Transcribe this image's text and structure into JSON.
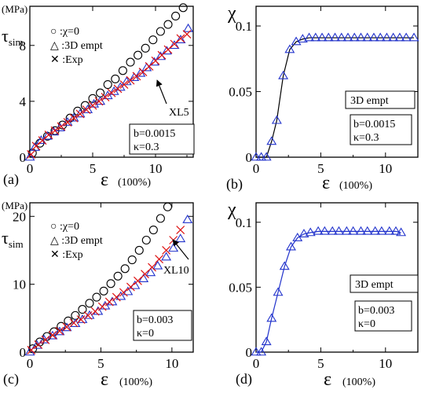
{
  "chart_data": [
    {
      "id": "a",
      "type": "scatter",
      "panel_label": "(a)",
      "unit": "(MPa)",
      "ylabel_main": "τ",
      "ylabel_sub": "sim",
      "xlabel_main": "ε",
      "xlabel_unit": "(100%)",
      "xlim": [
        0,
        13
      ],
      "ylim": [
        0,
        10.8
      ],
      "xticks": [
        0,
        5,
        10
      ],
      "yticks": [
        0,
        4,
        8
      ],
      "legend": [
        "○ :χ=0",
        "△ :3D empt",
        "✕ :Exp"
      ],
      "annotation_box": [
        "b=0.0015",
        "κ=0.3"
      ],
      "arrow_label": "XL5",
      "series": [
        {
          "name": ":χ=0",
          "marker": "circle",
          "color": "#000000",
          "x": [
            0.2,
            0.8,
            1.4,
            2.0,
            2.6,
            3.2,
            3.8,
            4.4,
            5.0,
            5.6,
            6.2,
            6.8,
            7.4,
            8.0,
            8.6,
            9.2,
            9.8,
            10.4,
            11.0,
            11.6,
            12.2
          ],
          "y": [
            0.3,
            1.0,
            1.5,
            1.9,
            2.3,
            2.8,
            3.3,
            3.7,
            4.2,
            4.6,
            5.2,
            5.6,
            6.2,
            6.8,
            7.3,
            7.8,
            8.4,
            9.0,
            9.5,
            10.1,
            10.7
          ]
        },
        {
          "name": ":3D empt",
          "marker": "triangle",
          "color": "#2233cc",
          "x": [
            0.0,
            0.4,
            0.9,
            1.4,
            1.9,
            2.4,
            3.0,
            3.5,
            4.0,
            4.6,
            5.1,
            5.6,
            6.2,
            6.7,
            7.2,
            7.7,
            8.3,
            8.8,
            9.3,
            9.9,
            10.4,
            10.9,
            11.5,
            12.0,
            12.6
          ],
          "y": [
            0.0,
            0.7,
            1.2,
            1.5,
            1.8,
            2.1,
            2.5,
            2.8,
            3.1,
            3.4,
            3.8,
            4.0,
            4.4,
            4.7,
            5.0,
            5.4,
            5.7,
            6.0,
            6.4,
            6.8,
            7.2,
            7.6,
            8.0,
            8.4,
            9.2
          ]
        },
        {
          "name": ":Exp",
          "marker": "x",
          "color": "#dd1111",
          "x": [
            0.1,
            0.5,
            1.0,
            1.5,
            2.0,
            2.5,
            3.0,
            3.5,
            4.0,
            4.5,
            5.0,
            5.5,
            6.0,
            6.5,
            7.0,
            7.5,
            8.0,
            8.5,
            9.0,
            9.5,
            10.0,
            10.5,
            11.0,
            11.5,
            12.0,
            12.5
          ],
          "y": [
            0.2,
            0.8,
            1.2,
            1.6,
            1.9,
            2.2,
            2.5,
            2.8,
            3.1,
            3.4,
            3.7,
            4.0,
            4.3,
            4.6,
            4.9,
            5.2,
            5.5,
            5.8,
            6.1,
            6.5,
            6.9,
            7.3,
            7.7,
            8.1,
            8.5,
            8.8
          ]
        }
      ]
    },
    {
      "id": "b",
      "type": "line",
      "panel_label": "(b)",
      "ylabel_main": "χ",
      "xlabel_main": "ε",
      "xlabel_unit": "(100%)",
      "xlim": [
        0,
        12.5
      ],
      "ylim": [
        0,
        0.115
      ],
      "xticks": [
        0,
        5,
        10
      ],
      "yticks": [
        0,
        0.05,
        0.1
      ],
      "ytick_labels": [
        "0",
        "0.05",
        "0.1"
      ],
      "legend": [
        "3D empt"
      ],
      "annotation_box": [
        "b=0.0015",
        "κ=0.3"
      ],
      "series": [
        {
          "name": "3D empt",
          "marker": "triangle",
          "line_color": "#000000",
          "marker_color": "#2233cc",
          "x": [
            0.0,
            0.4,
            0.8,
            1.2,
            1.6,
            2.1,
            2.6,
            3.1,
            3.6,
            4.1,
            4.6,
            5.1,
            5.6,
            6.1,
            6.6,
            7.1,
            7.6,
            8.1,
            8.6,
            9.1,
            9.6,
            10.1,
            10.6,
            11.1,
            11.6,
            12.2
          ],
          "y": [
            0.0,
            0.0,
            0.0,
            0.012,
            0.028,
            0.062,
            0.082,
            0.088,
            0.09,
            0.091,
            0.091,
            0.091,
            0.091,
            0.091,
            0.091,
            0.091,
            0.091,
            0.091,
            0.091,
            0.091,
            0.091,
            0.091,
            0.091,
            0.091,
            0.091,
            0.091
          ]
        }
      ]
    },
    {
      "id": "c",
      "type": "scatter",
      "panel_label": "(c)",
      "unit": "(MPa)",
      "ylabel_main": "τ",
      "ylabel_sub": "sim",
      "xlabel_main": "ε",
      "xlabel_unit": "(100%)",
      "xlim": [
        0,
        11.5
      ],
      "ylim": [
        0,
        22
      ],
      "xticks": [
        0,
        5,
        10
      ],
      "yticks": [
        0,
        10,
        20
      ],
      "legend": [
        "○ :χ=0",
        "△ :3D empt",
        "✕ :Exp"
      ],
      "annotation_box": [
        "b=0.003",
        "κ=0"
      ],
      "arrow_label": "XL10",
      "series": [
        {
          "name": ":χ=0",
          "marker": "circle",
          "color": "#000000",
          "x": [
            0.2,
            0.7,
            1.2,
            1.7,
            2.2,
            2.7,
            3.2,
            3.7,
            4.2,
            4.7,
            5.2,
            5.7,
            6.2,
            6.7,
            7.2,
            7.7,
            8.2,
            8.7,
            9.2,
            9.7
          ],
          "y": [
            0.5,
            1.5,
            2.3,
            3.0,
            3.8,
            4.6,
            5.4,
            6.3,
            7.2,
            8.1,
            9.0,
            10.1,
            11.2,
            12.3,
            13.6,
            15.0,
            16.5,
            18.0,
            19.7,
            21.4
          ]
        },
        {
          "name": ":3D empt",
          "marker": "triangle",
          "color": "#2233cc",
          "x": [
            0.0,
            0.5,
            1.0,
            1.6,
            2.1,
            2.6,
            3.2,
            3.7,
            4.2,
            4.8,
            5.3,
            5.8,
            6.4,
            6.9,
            7.4,
            8.0,
            8.5,
            9.0,
            9.6,
            10.1,
            10.6,
            11.1
          ],
          "y": [
            0.0,
            1.0,
            1.8,
            2.4,
            3.0,
            3.6,
            4.2,
            4.8,
            5.4,
            6.0,
            6.8,
            7.4,
            8.2,
            8.9,
            9.8,
            10.8,
            11.7,
            12.7,
            14.0,
            15.3,
            16.7,
            19.5
          ]
        },
        {
          "name": ":Exp",
          "marker": "x",
          "color": "#dd1111",
          "x": [
            0.1,
            0.6,
            1.1,
            1.6,
            2.1,
            2.6,
            3.1,
            3.6,
            4.1,
            4.6,
            5.1,
            5.6,
            6.1,
            6.6,
            7.1,
            7.6,
            8.1,
            8.6,
            9.1,
            9.6,
            10.1,
            10.6
          ],
          "y": [
            0.3,
            1.1,
            1.8,
            2.5,
            3.1,
            3.7,
            4.3,
            4.8,
            5.4,
            6.0,
            6.7,
            7.4,
            8.1,
            8.8,
            9.6,
            10.5,
            11.5,
            12.5,
            13.7,
            15.0,
            16.5,
            18.0
          ]
        }
      ]
    },
    {
      "id": "d",
      "type": "line",
      "panel_label": "(d)",
      "ylabel_main": "χ",
      "xlabel_main": "ε",
      "xlabel_unit": "(100%)",
      "xlim": [
        0,
        12.5
      ],
      "ylim": [
        0,
        0.115
      ],
      "xticks": [
        0,
        5,
        10
      ],
      "yticks": [
        0,
        0.05,
        0.1
      ],
      "ytick_labels": [
        "0",
        "0.05",
        "0.1"
      ],
      "legend": [
        "3D empt"
      ],
      "annotation_box": [
        "b=0.003",
        "κ=0"
      ],
      "series": [
        {
          "name": "3D empt",
          "marker": "triangle",
          "line_color": "#2233cc",
          "marker_color": "#2233cc",
          "x": [
            0.0,
            0.4,
            0.8,
            1.2,
            1.7,
            2.2,
            2.7,
            3.2,
            3.7,
            4.2,
            4.8,
            5.3,
            5.9,
            6.4,
            7.0,
            7.5,
            8.1,
            8.6,
            9.2,
            9.7,
            10.3,
            10.8,
            11.2
          ],
          "y": [
            0.0,
            0.0,
            0.008,
            0.026,
            0.046,
            0.066,
            0.081,
            0.088,
            0.091,
            0.092,
            0.093,
            0.093,
            0.093,
            0.093,
            0.093,
            0.093,
            0.093,
            0.093,
            0.093,
            0.093,
            0.093,
            0.093,
            0.092
          ]
        }
      ]
    }
  ]
}
